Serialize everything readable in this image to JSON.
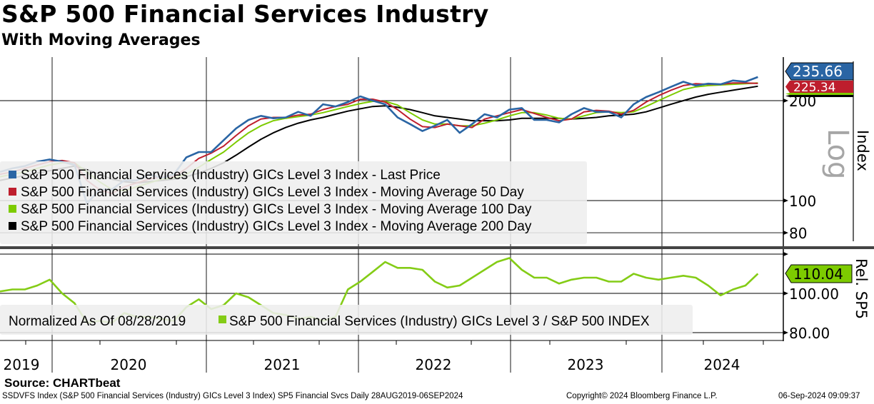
{
  "header": {
    "title": "S&P 500 Financial Services Industry",
    "subtitle": "With Moving Averages"
  },
  "colors": {
    "price": "#2a65a4",
    "ma50": "#be1e2d",
    "ma100": "#7dcb00",
    "ma200": "#000000",
    "rel": "#84cc16"
  },
  "chart_data": [
    {
      "type": "line",
      "title": "S&P 500 Financial Services Industry",
      "scale": "log",
      "scale_label": "Log",
      "ylabel": "Index",
      "ylim": [
        72,
        270
      ],
      "y_ticks": [
        "200",
        "100",
        "80"
      ],
      "x_start": "2019-08",
      "x_step": "month",
      "x_tick_labels": [
        "2019",
        "2020",
        "2021",
        "2022",
        "2023",
        "2024"
      ],
      "last_value_labels": {
        "price": "235.66",
        "ma50": "225.34"
      },
      "series": [
        {
          "name": "S&P 500 Financial Services (Industry) GICs Level 3 Index - Last Price",
          "color": "#2a65a4",
          "values": [
            122,
            125,
            127,
            131,
            133,
            131,
            128,
            98,
            108,
            108,
            115,
            115,
            120,
            117,
            120,
            135,
            140,
            140,
            152,
            165,
            175,
            180,
            177,
            178,
            185,
            180,
            195,
            192,
            198,
            206,
            200,
            195,
            178,
            170,
            162,
            168,
            175,
            160,
            170,
            182,
            178,
            188,
            190,
            175,
            175,
            172,
            182,
            190,
            185,
            185,
            178,
            195,
            205,
            212,
            220,
            228,
            222,
            225,
            224,
            230,
            228,
            235.66
          ]
        },
        {
          "name": "S&P 500 Financial Services (Industry) GICs Level 3 Index - Moving Average 50 Day",
          "color": "#be1e2d",
          "values": [
            120,
            122,
            125,
            128,
            131,
            132,
            130,
            115,
            108,
            105,
            110,
            113,
            116,
            118,
            118,
            125,
            134,
            139,
            146,
            157,
            168,
            176,
            178,
            178,
            181,
            182,
            188,
            192,
            195,
            202,
            202,
            198,
            188,
            176,
            167,
            166,
            170,
            168,
            166,
            176,
            180,
            184,
            188,
            183,
            178,
            174,
            176,
            185,
            187,
            186,
            182,
            187,
            198,
            207,
            215,
            222,
            225,
            224,
            224,
            226,
            226,
            225.34
          ]
        },
        {
          "name": "S&P 500 Financial Services (Industry) GICs Level 3 Index - Moving Average 100 Day",
          "color": "#7dcb00",
          "values": [
            118,
            120,
            122,
            125,
            128,
            130,
            130,
            122,
            114,
            108,
            107,
            110,
            113,
            116,
            117,
            120,
            126,
            133,
            140,
            150,
            160,
            168,
            174,
            177,
            179,
            181,
            184,
            188,
            192,
            196,
            199,
            199,
            194,
            184,
            175,
            170,
            170,
            168,
            168,
            171,
            175,
            180,
            184,
            184,
            181,
            177,
            176,
            180,
            184,
            185,
            184,
            185,
            192,
            200,
            208,
            216,
            220,
            222,
            223,
            224,
            225,
            226
          ]
        },
        {
          "name": "S&P 500 Financial Services (Industry) GICs Level 3 Index - Moving Average 200 Day",
          "color": "#000000",
          "values": [
            115,
            117,
            119,
            121,
            123,
            125,
            127,
            124,
            120,
            116,
            114,
            113,
            114,
            115,
            116,
            118,
            121,
            125,
            130,
            137,
            145,
            153,
            160,
            166,
            171,
            175,
            178,
            182,
            186,
            189,
            192,
            193,
            191,
            188,
            184,
            180,
            178,
            176,
            174,
            174,
            174,
            175,
            177,
            177,
            177,
            177,
            176,
            177,
            178,
            180,
            181,
            182,
            185,
            190,
            195,
            200,
            205,
            209,
            212,
            215,
            218,
            221
          ]
        }
      ]
    },
    {
      "type": "line",
      "ylabel": "Rel. SP5",
      "ylim": [
        78,
        120
      ],
      "y_ticks": [
        "100.00",
        "80.00"
      ],
      "legend_prefix": "Normalized As Of 08/28/2019",
      "last_value_label": "110.04",
      "series": [
        {
          "name": "S&P 500 Financial Services (Industry) GICs Level 3 / S&P 500 INDEX",
          "color": "#84cc16",
          "values": [
            101,
            102,
            102,
            104,
            107,
            100,
            95,
            85,
            86,
            85,
            90,
            88,
            88,
            87,
            86,
            93,
            97,
            92,
            94,
            100,
            98,
            94,
            90,
            89,
            87,
            88,
            86,
            88,
            102,
            106,
            111,
            116,
            113,
            113,
            112,
            106,
            103,
            104,
            108,
            112,
            116,
            118,
            112,
            108,
            108,
            105,
            107,
            108,
            108,
            106,
            106,
            110,
            108,
            107,
            108,
            109,
            108,
            104,
            99,
            102,
            104,
            110.04
          ]
        }
      ]
    }
  ],
  "footer": {
    "source": "Source: CHARTbeat",
    "description": "SSDVFS Index (S&P 500 Financial Services (Industry) GICs Level 3 Index) SP5 Financial Svcs  Daily 28AUG2019-06SEP2024",
    "copyright": "Copyright© 2024 Bloomberg Finance L.P.",
    "timestamp": "06-Sep-2024 09:09:37"
  }
}
